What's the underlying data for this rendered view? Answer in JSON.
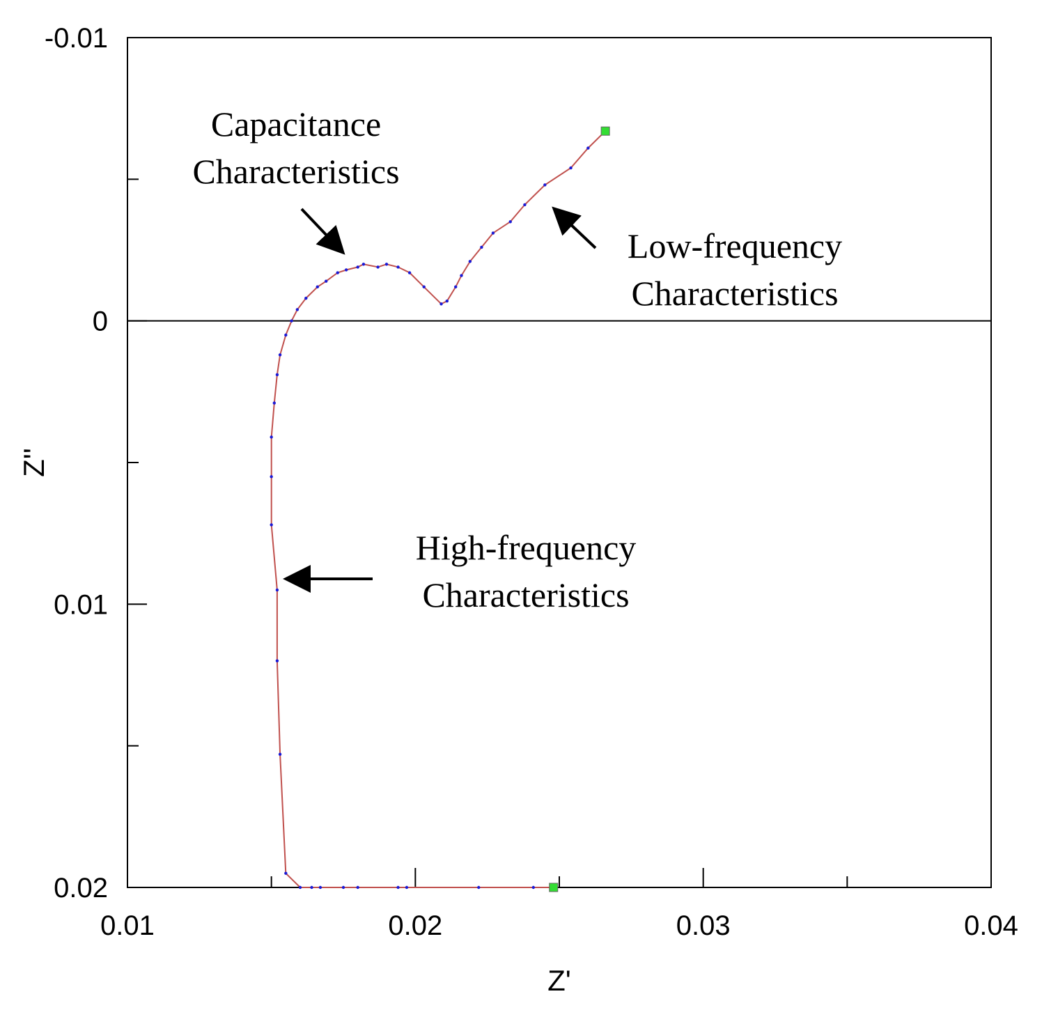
{
  "chart_data": {
    "type": "line",
    "title": "",
    "xlabel": "Z'",
    "ylabel": "Z''",
    "xlim": [
      0.01,
      0.04
    ],
    "ylim": [
      -0.01,
      0.02
    ],
    "y_axis_inverted": true,
    "grid": false,
    "legend": "none",
    "x_ticks": [
      0.01,
      0.02,
      0.03,
      0.04
    ],
    "x_tick_labels": [
      "0.01",
      "0.02",
      "0.03",
      "0.04"
    ],
    "y_ticks": [
      -0.01,
      0,
      0.01,
      0.02
    ],
    "y_tick_labels": [
      "-0.01",
      "0",
      "0.01",
      "0.02"
    ],
    "line_color": "#c0504d",
    "marker_color": "#1a1ad6",
    "endpoint_color": "#33dd33",
    "series": [
      {
        "points": [
          [
            0.0248,
            0.02
          ],
          [
            0.0241,
            0.02
          ],
          [
            0.0222,
            0.02
          ],
          [
            0.0197,
            0.02
          ],
          [
            0.0194,
            0.02
          ],
          [
            0.018,
            0.02
          ],
          [
            0.0175,
            0.02
          ],
          [
            0.0167,
            0.02
          ],
          [
            0.0164,
            0.02
          ],
          [
            0.016,
            0.02
          ],
          [
            0.0155,
            0.0195
          ],
          [
            0.0153,
            0.0153
          ],
          [
            0.0152,
            0.012
          ],
          [
            0.0152,
            0.0095
          ],
          [
            0.015,
            0.0072
          ],
          [
            0.015,
            0.0055
          ],
          [
            0.015,
            0.0041
          ],
          [
            0.0151,
            0.0029
          ],
          [
            0.0152,
            0.0019
          ],
          [
            0.0153,
            0.0012
          ],
          [
            0.0155,
            0.0005
          ],
          [
            0.0157,
            0.0
          ],
          [
            0.0159,
            -0.0004
          ],
          [
            0.0162,
            -0.0008
          ],
          [
            0.0166,
            -0.0012
          ],
          [
            0.0169,
            -0.0014
          ],
          [
            0.0173,
            -0.0017
          ],
          [
            0.0176,
            -0.0018
          ],
          [
            0.018,
            -0.0019
          ],
          [
            0.0182,
            -0.002
          ],
          [
            0.0187,
            -0.0019
          ],
          [
            0.019,
            -0.002
          ],
          [
            0.0194,
            -0.0019
          ],
          [
            0.0198,
            -0.0017
          ],
          [
            0.0203,
            -0.0012
          ],
          [
            0.0209,
            -0.0006
          ],
          [
            0.0211,
            -0.0007
          ],
          [
            0.0214,
            -0.0012
          ],
          [
            0.0216,
            -0.0016
          ],
          [
            0.0219,
            -0.0021
          ],
          [
            0.0223,
            -0.0026
          ],
          [
            0.0227,
            -0.0031
          ],
          [
            0.0233,
            -0.0035
          ],
          [
            0.0238,
            -0.0041
          ],
          [
            0.0245,
            -0.0048
          ],
          [
            0.0254,
            -0.0054
          ],
          [
            0.026,
            -0.0061
          ],
          [
            0.0266,
            -0.0067
          ]
        ]
      }
    ],
    "annotations": [
      {
        "lines": [
          "Capacitance",
          "Characteristics"
        ],
        "target": [
          0.0177,
          -0.0025
        ]
      },
      {
        "lines": [
          "Low-frequency",
          "Characteristics"
        ],
        "target": [
          0.025,
          -0.0041
        ]
      },
      {
        "lines": [
          "High-frequency",
          "Characteristics"
        ],
        "target": [
          0.0155,
          0.009
        ]
      }
    ]
  }
}
